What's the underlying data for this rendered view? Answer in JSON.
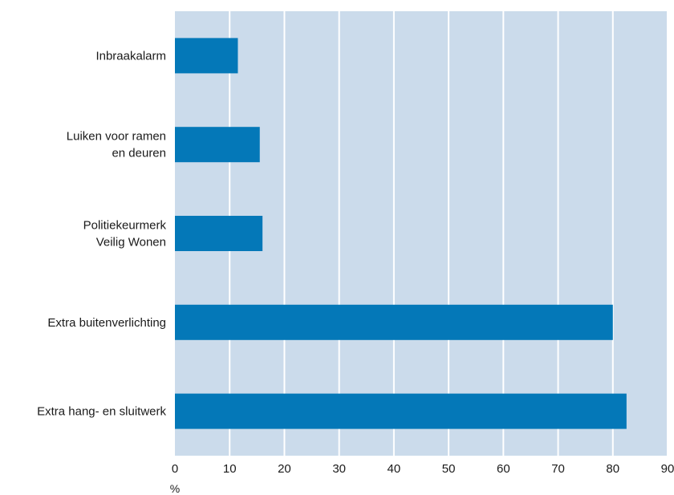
{
  "chart_data": {
    "type": "bar",
    "orientation": "horizontal",
    "categories": [
      [
        "Inbraakalarm"
      ],
      [
        "Luiken voor ramen",
        "en deuren"
      ],
      [
        "Politiekeurmerk",
        "Veilig Wonen"
      ],
      [
        "Extra buitenverlichting"
      ],
      [
        "Extra hang- en sluitwerk"
      ]
    ],
    "values": [
      11.5,
      15.5,
      16,
      80,
      82.5
    ],
    "xlim": [
      0,
      90
    ],
    "xticks": [
      0,
      10,
      20,
      30,
      40,
      50,
      60,
      70,
      80,
      90
    ],
    "xunit": "%",
    "title": "",
    "grid": true,
    "colors": {
      "bar": "#0478b8",
      "plot_background": "#cbdbeb",
      "gridline": "#ffffff"
    }
  }
}
